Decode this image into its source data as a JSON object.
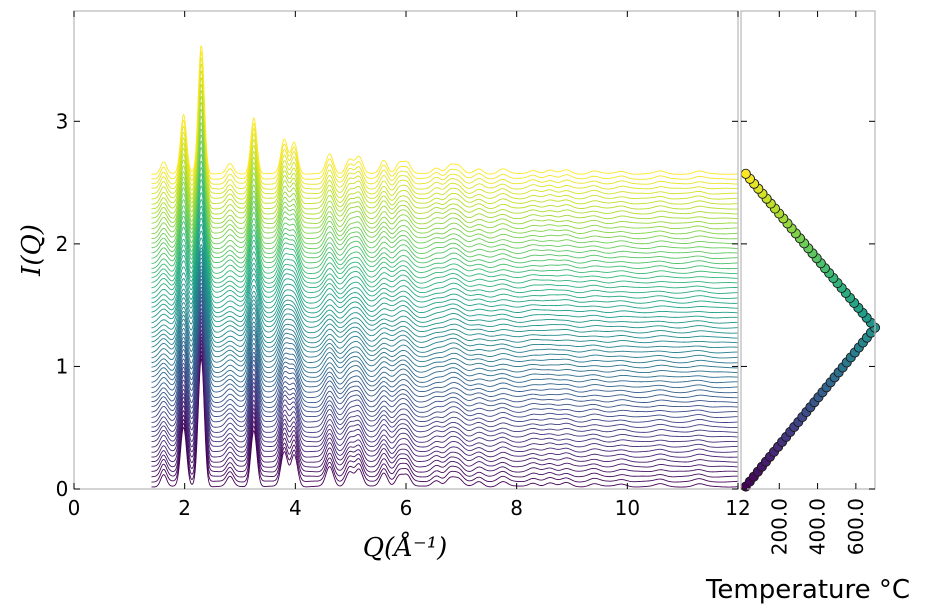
{
  "chart_data": [
    {
      "type": "line",
      "description_series": "waterfall of stacked I(Q) scattering patterns, one per temperature, colored with viridis colormap",
      "ylabel": "I(Q)",
      "xlabel": "Q(Å⁻¹)",
      "xlim": [
        0,
        12
      ],
      "ylim": [
        0,
        3.9
      ],
      "x_ticks": [
        "0",
        "2",
        "4",
        "6",
        "8",
        "10",
        "12"
      ],
      "y_ticks": [
        "0",
        "1",
        "2",
        "3"
      ],
      "n_series": 64,
      "baseline_start": 0.02,
      "baseline_step": 0.0405,
      "peaks": [
        {
          "q": 1.62,
          "h": 0.1,
          "w": 0.018
        },
        {
          "q": 1.98,
          "h": 0.48,
          "w": 0.018
        },
        {
          "q": 2.3,
          "h": 1.05,
          "w": 0.018
        },
        {
          "q": 2.82,
          "h": 0.08,
          "w": 0.02
        },
        {
          "q": 3.25,
          "h": 0.46,
          "w": 0.018
        },
        {
          "q": 3.8,
          "h": 0.28,
          "w": 0.02
        },
        {
          "q": 3.98,
          "h": 0.26,
          "w": 0.02
        },
        {
          "q": 4.62,
          "h": 0.16,
          "w": 0.022
        },
        {
          "q": 4.98,
          "h": 0.12,
          "w": 0.022
        },
        {
          "q": 5.15,
          "h": 0.14,
          "w": 0.022
        },
        {
          "q": 5.6,
          "h": 0.11,
          "w": 0.022
        },
        {
          "q": 5.88,
          "h": 0.09,
          "w": 0.022
        },
        {
          "q": 6.02,
          "h": 0.09,
          "w": 0.022
        },
        {
          "q": 6.55,
          "h": 0.05,
          "w": 0.025
        },
        {
          "q": 6.8,
          "h": 0.07,
          "w": 0.025
        },
        {
          "q": 6.95,
          "h": 0.06,
          "w": 0.025
        },
        {
          "q": 7.32,
          "h": 0.04,
          "w": 0.025
        },
        {
          "q": 7.75,
          "h": 0.04,
          "w": 0.028
        },
        {
          "q": 8.3,
          "h": 0.03,
          "w": 0.028
        },
        {
          "q": 8.6,
          "h": 0.03,
          "w": 0.028
        },
        {
          "q": 8.9,
          "h": 0.03,
          "w": 0.028
        },
        {
          "q": 9.4,
          "h": 0.025,
          "w": 0.03
        },
        {
          "q": 9.9,
          "h": 0.02,
          "w": 0.03
        },
        {
          "q": 10.6,
          "h": 0.02,
          "w": 0.03
        },
        {
          "q": 11.3,
          "h": 0.02,
          "w": 0.03
        }
      ],
      "colormap": [
        "#440154",
        "#482878",
        "#3e4989",
        "#31688e",
        "#26828e",
        "#1f9e89",
        "#35b779",
        "#6ece58",
        "#b5de2b",
        "#fde725"
      ]
    },
    {
      "type": "scatter",
      "xlabel": "Temperature °C",
      "x_ticks": [
        "200.0",
        "400.0",
        "600.0"
      ],
      "x_tick_values": [
        200,
        400,
        600
      ],
      "xlim": [
        0,
        700
      ],
      "ylim": [
        0,
        3.9
      ],
      "profile": {
        "t_start": 25,
        "t_max": 700,
        "peak_index": 32,
        "n_points": 64
      },
      "marker_edge": "#1a1a1a"
    }
  ]
}
